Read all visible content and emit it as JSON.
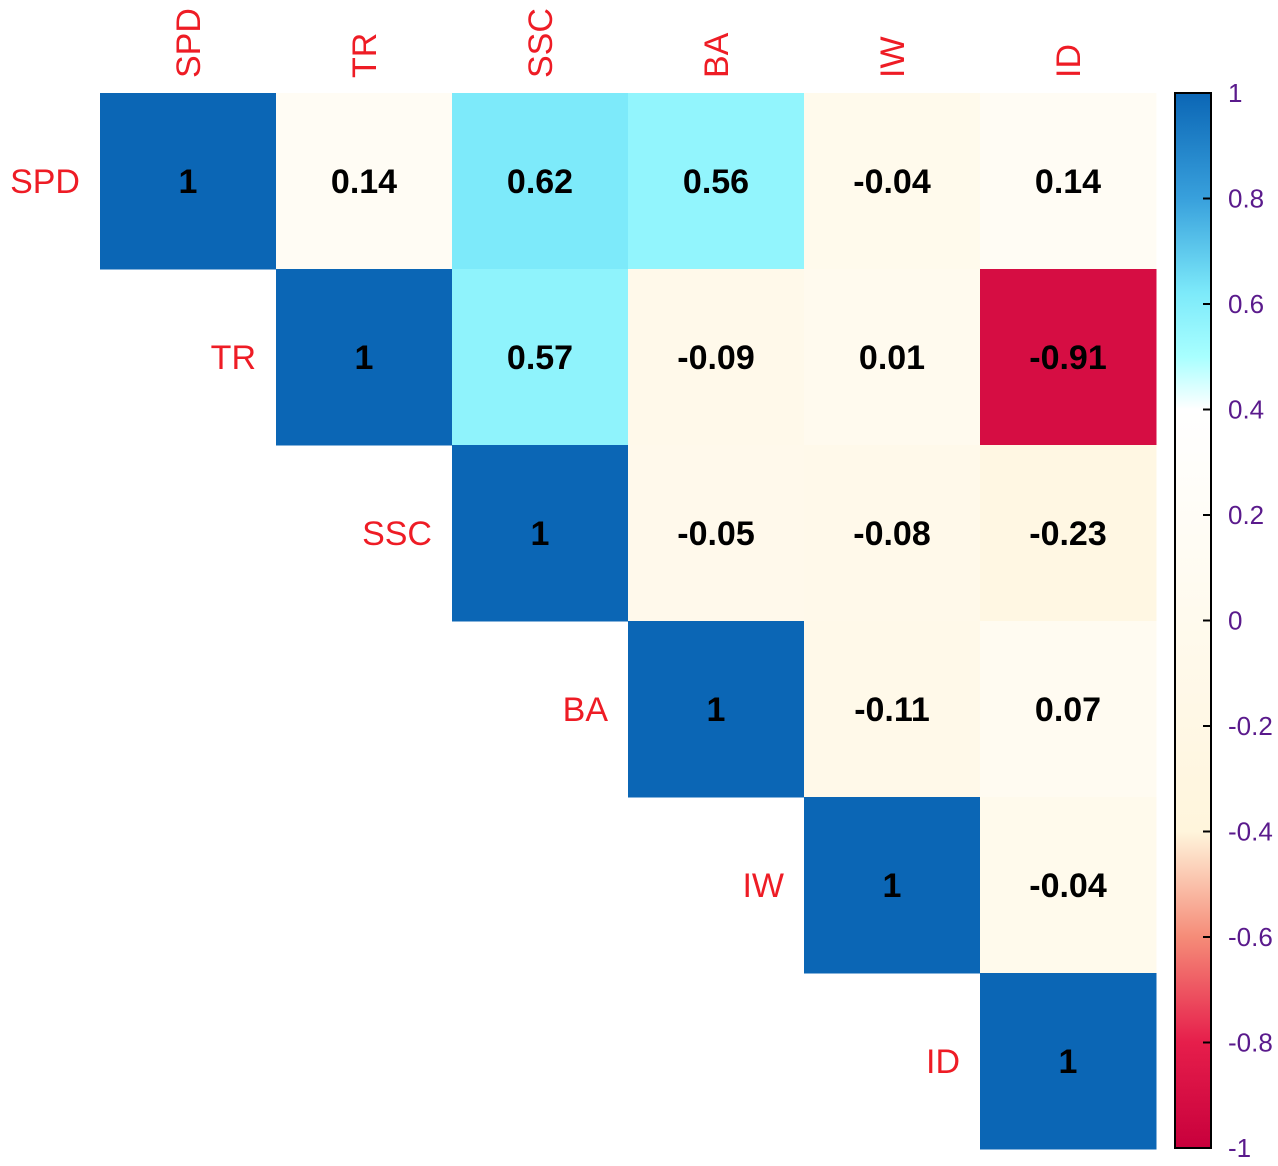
{
  "chart_data": {
    "type": "heatmap",
    "variables": [
      "SPD",
      "TR",
      "SSC",
      "BA",
      "IW",
      "ID"
    ],
    "matrix": [
      [
        1,
        0.14,
        0.62,
        0.56,
        -0.04,
        0.14
      ],
      [
        0.14,
        1,
        0.57,
        -0.09,
        0.01,
        -0.91
      ],
      [
        0.62,
        0.57,
        1,
        -0.05,
        -0.08,
        -0.23
      ],
      [
        0.56,
        -0.09,
        -0.05,
        1,
        -0.11,
        0.07
      ],
      [
        -0.04,
        0.01,
        -0.08,
        -0.11,
        1,
        -0.04
      ],
      [
        0.14,
        -0.91,
        -0.23,
        0.07,
        -0.04,
        1
      ]
    ],
    "display": "upper",
    "value_labels": [
      [
        "1",
        "0.14",
        "0.62",
        "0.56",
        "-0.04",
        "0.14"
      ],
      [
        "",
        "1",
        "0.57",
        "-0.09",
        "0.01",
        "-0.91"
      ],
      [
        "",
        "",
        "1",
        "-0.05",
        "-0.08",
        "-0.23"
      ],
      [
        "",
        "",
        "",
        "1",
        "-0.11",
        "0.07"
      ],
      [
        "",
        "",
        "",
        "",
        "1",
        "-0.04"
      ],
      [
        "",
        "",
        "",
        "",
        "",
        "1"
      ]
    ],
    "color_scale": {
      "range": [
        -1,
        1
      ],
      "stops": [
        {
          "value": -1,
          "color": "#c8003c"
        },
        {
          "value": -0.8,
          "color": "#e61e4b"
        },
        {
          "value": -0.6,
          "color": "#f58c78"
        },
        {
          "value": -0.4,
          "color": "#fff5dc"
        },
        {
          "value": 0.4,
          "color": "#ffffff"
        },
        {
          "value": 0.5,
          "color": "#a8ffff"
        },
        {
          "value": 0.62,
          "color": "#7deafa"
        },
        {
          "value": 0.8,
          "color": "#38a0dc"
        },
        {
          "value": 1,
          "color": "#0b66b5"
        }
      ],
      "ticks": [
        1,
        0.8,
        0.6,
        0.4,
        0.2,
        0,
        -0.2,
        -0.4,
        -0.6,
        -0.8,
        -1
      ],
      "tick_labels": [
        "1",
        "0.8",
        "0.6",
        "0.4",
        "0.2",
        "0",
        "-0.2",
        "-0.4",
        "-0.6",
        "-0.8",
        "-1"
      ]
    },
    "label_color": "#ee1c25",
    "tick_label_color": "#5a1a8c",
    "legend": "right"
  }
}
